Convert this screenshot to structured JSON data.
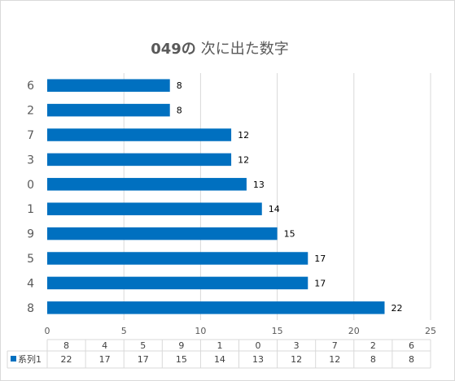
{
  "chart_data": {
    "type": "bar",
    "orientation": "horizontal",
    "title_bold": "049の",
    "title_rest": "次に出た数字",
    "categories": [
      "6",
      "2",
      "7",
      "3",
      "0",
      "1",
      "9",
      "5",
      "4",
      "8"
    ],
    "series": [
      {
        "name": "系列1",
        "values": [
          8,
          8,
          12,
          12,
          13,
          14,
          15,
          17,
          17,
          22
        ],
        "color": "#0070c0"
      }
    ],
    "xlim": [
      0,
      25
    ],
    "x_ticks": [
      0,
      5,
      10,
      15,
      20,
      25
    ],
    "data_labels": true,
    "data_table": {
      "header": [
        "8",
        "4",
        "5",
        "9",
        "1",
        "0",
        "3",
        "7",
        "2",
        "6"
      ],
      "row_label": "系列1",
      "row_values": [
        "22",
        "17",
        "17",
        "15",
        "14",
        "13",
        "12",
        "12",
        "8",
        "8"
      ]
    },
    "colors": {
      "bar": "#0070c0",
      "grid": "#d9d9d9",
      "text": "#595959"
    }
  }
}
